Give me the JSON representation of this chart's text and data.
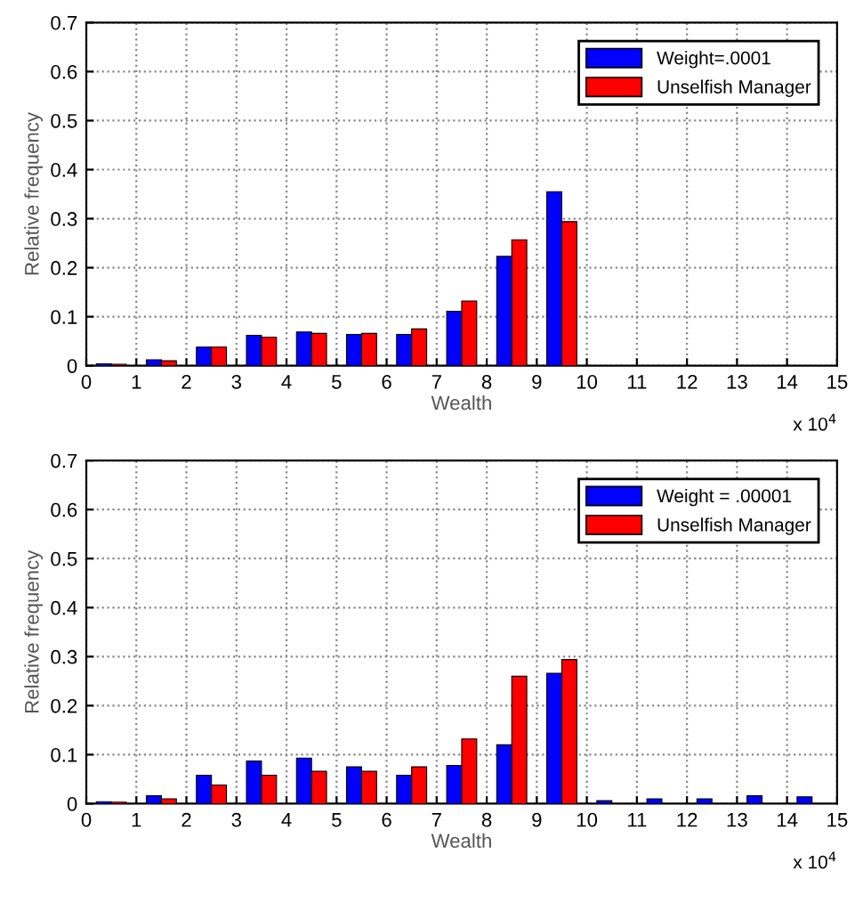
{
  "chart_data": [
    {
      "type": "bar",
      "x": [
        0.5,
        1.5,
        2.5,
        3.5,
        4.5,
        5.5,
        6.5,
        7.5,
        8.5,
        9.5
      ],
      "xlabel": "Wealth",
      "ylabel": "Relative frequency",
      "xlim": [
        0,
        15
      ],
      "xticks": [
        0,
        1,
        2,
        3,
        4,
        5,
        6,
        7,
        8,
        9,
        10,
        11,
        12,
        13,
        14,
        15
      ],
      "ylim": [
        0,
        0.7
      ],
      "yticks": [
        0,
        0.1,
        0.2,
        0.3,
        0.4,
        0.5,
        0.6,
        0.7
      ],
      "grid": true,
      "legend": "top right",
      "annotations": [
        "x 10$^{4}$"
      ],
      "series": [
        {
          "name": "Weight=.0001",
          "color": "#0000ff",
          "values": [
            0.004,
            0.012,
            0.038,
            0.062,
            0.069,
            0.064,
            0.064,
            0.111,
            0.223,
            0.355
          ]
        },
        {
          "name": "Unselfish Manager",
          "color": "#ff0000",
          "values": [
            0.003,
            0.01,
            0.038,
            0.058,
            0.066,
            0.066,
            0.075,
            0.132,
            0.257,
            0.294
          ]
        }
      ]
    },
    {
      "type": "bar",
      "x": [
        0.5,
        1.5,
        2.5,
        3.5,
        4.5,
        5.5,
        6.5,
        7.5,
        8.5,
        9.5,
        10.5,
        11.5,
        12.5,
        13.5,
        14.5
      ],
      "xlabel": "Wealth",
      "ylabel": "Relative frequency",
      "xlim": [
        0,
        15
      ],
      "xticks": [
        0,
        1,
        2,
        3,
        4,
        5,
        6,
        7,
        8,
        9,
        10,
        11,
        12,
        13,
        14,
        15
      ],
      "ylim": [
        0,
        0.7
      ],
      "yticks": [
        0,
        0.1,
        0.2,
        0.3,
        0.4,
        0.5,
        0.6,
        0.7
      ],
      "grid": true,
      "legend": "top right",
      "annotations": [
        "x 10$^{4}$"
      ],
      "series": [
        {
          "name": "Weight = .00001",
          "color": "#0000ff",
          "values": [
            0.004,
            0.016,
            0.058,
            0.087,
            0.093,
            0.075,
            0.058,
            0.078,
            0.12,
            0.266,
            0.006,
            0.01,
            0.01,
            0.016,
            0.014
          ]
        },
        {
          "name": "Unselfish Manager",
          "color": "#ff0000",
          "values": [
            0.003,
            0.01,
            0.038,
            0.058,
            0.066,
            0.066,
            0.075,
            0.132,
            0.26,
            0.294,
            null,
            null,
            null,
            null,
            null
          ]
        }
      ]
    }
  ]
}
